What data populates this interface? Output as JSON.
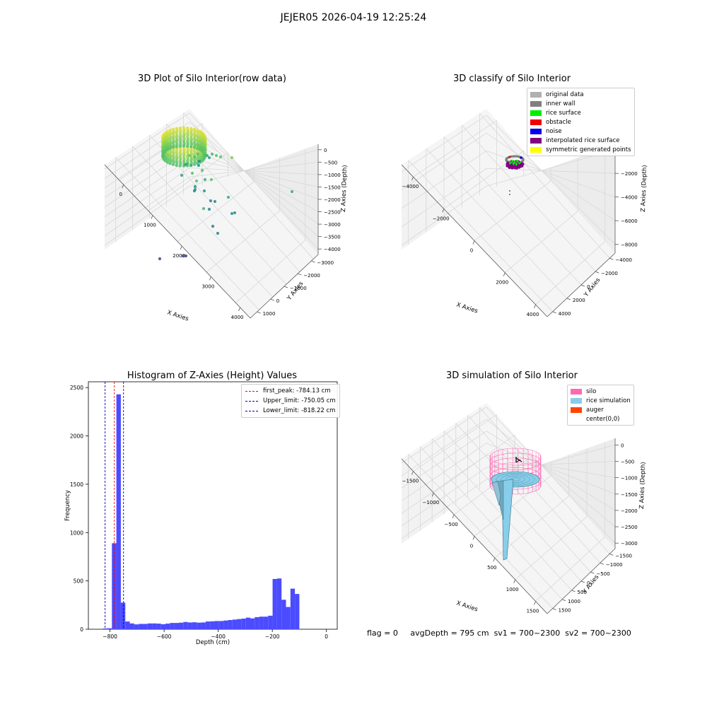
{
  "figure": {
    "suptitle": "JEJER05 2026-04-19 12:25:24",
    "status": {
      "flag": "flag = 0",
      "avg_depth": "avgDepth = 795 cm",
      "sv1": "sv1 = 700~2300",
      "sv2": "sv2 = 700~2300"
    }
  },
  "chart_data": [
    {
      "type": "scatter3d",
      "title": "3D Plot of Silo Interior(row data)",
      "xlabel": "X Axies",
      "ylabel": "Y Axies",
      "zlabel": "Z Axies (Depth)",
      "x_ticks": [
        "0",
        "1000",
        "2000",
        "3000",
        "4000"
      ],
      "y_ticks": [
        "1000",
        "0",
        "−1000",
        "−2000",
        "−3000"
      ],
      "z_ticks": [
        "0",
        "−500",
        "−1000",
        "−1500",
        "−2000",
        "−2500",
        "−3000",
        "−3500",
        "−4000"
      ],
      "colormap": "viridis"
    },
    {
      "type": "scatter3d",
      "title": "3D classify of Silo Interior",
      "xlabel": "X Axies",
      "ylabel": "Y Axies",
      "zlabel": "Z Axies (Depth)",
      "x_ticks": [
        "−4000",
        "−2000",
        "0",
        "2000",
        "4000"
      ],
      "y_ticks": [
        "4000",
        "2000",
        "0",
        "−2000",
        "−4000"
      ],
      "z_ticks": [
        "0",
        "−2000",
        "−4000",
        "−6000",
        "−8000"
      ],
      "legend": [
        {
          "label": "original data",
          "color": "#b0b0b0"
        },
        {
          "label": "inner wall",
          "color": "#808080"
        },
        {
          "label": "rice surface",
          "color": "#00ee00"
        },
        {
          "label": "obstacle",
          "color": "#ee0000"
        },
        {
          "label": "noise",
          "color": "#0000ee"
        },
        {
          "label": "interpolated rice surface",
          "color": "#800080"
        },
        {
          "label": "symmetric generated points",
          "color": "#ffff00"
        }
      ]
    },
    {
      "type": "bar",
      "title": "Histogram of Z-Axies (Height) Values",
      "xlabel": "Depth (cm)",
      "ylabel": "Frequency",
      "xlim": [
        -880,
        40
      ],
      "ylim": [
        0,
        2560
      ],
      "x_ticks": [
        -800,
        -600,
        -400,
        -200,
        0
      ],
      "x_tick_labels": [
        "−800",
        "−600",
        "−400",
        "−200",
        "0"
      ],
      "y_ticks": [
        0,
        500,
        1000,
        1500,
        2000,
        2500
      ],
      "y_tick_labels": [
        "0",
        "500",
        "1000",
        "1500",
        "2000",
        "2500"
      ],
      "bar_color": "#4b4bff",
      "bin_width": 16.5,
      "bins_start": -826,
      "values": [
        8,
        10,
        890,
        2430,
        275,
        80,
        60,
        50,
        55,
        55,
        60,
        60,
        58,
        52,
        58,
        65,
        65,
        68,
        75,
        70,
        72,
        68,
        70,
        80,
        82,
        85,
        85,
        90,
        95,
        100,
        105,
        110,
        120,
        112,
        125,
        130,
        130,
        140,
        520,
        525,
        305,
        230,
        420,
        365
      ],
      "vlines": [
        {
          "label": "first_peak: -784.13 cm",
          "x": -784.13,
          "color": "#ff0000"
        },
        {
          "label": "Upper_limit: -750.05 cm",
          "x": -750.05,
          "color": "#0000aa"
        },
        {
          "label": "Lower_limit: -818.22 cm",
          "x": -818.22,
          "color": "#0000aa"
        }
      ]
    },
    {
      "type": "surface3d",
      "title": "3D simulation of Silo Interior",
      "xlabel": "X Axies",
      "ylabel": "Y Axies",
      "zlabel": "Z Axies (Depth)",
      "x_ticks": [
        "−1500",
        "−1000",
        "−500",
        "0",
        "500",
        "1000",
        "1500"
      ],
      "y_ticks": [
        "1500",
        "1000",
        "500",
        "0",
        "−500",
        "−1000",
        "−1500"
      ],
      "z_ticks": [
        "0",
        "−500",
        "−1000",
        "−1500",
        "−2000",
        "−2500",
        "−3000"
      ],
      "legend": [
        {
          "label": "silo",
          "color": "#ff69b4"
        },
        {
          "label": "rice simulation",
          "color": "#87ceeb"
        },
        {
          "label": "auger",
          "color": "#ff4500"
        },
        {
          "label": "center(0,0)",
          "color": "#ffffff"
        }
      ]
    }
  ]
}
